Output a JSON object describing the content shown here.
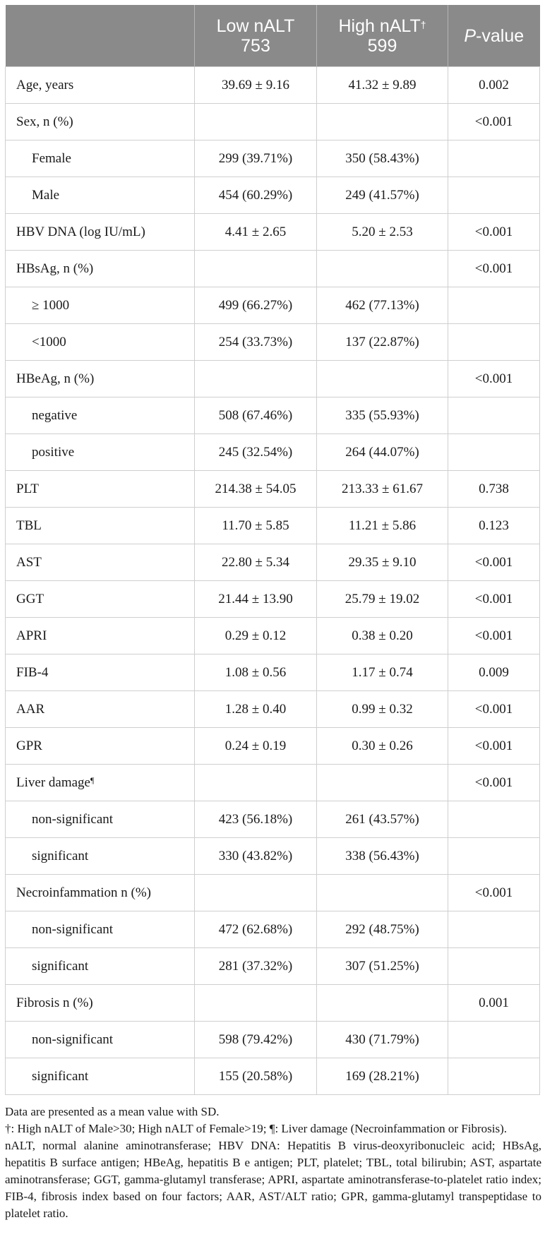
{
  "header": {
    "col1": "",
    "col2_line1": "Low nALT",
    "col2_line2": "753",
    "col3_line1": "High nALT",
    "col3_sup": "†",
    "col3_line2": "599",
    "col4_italic": "P",
    "col4_rest": "-value"
  },
  "rows": [
    {
      "label": "Age, years",
      "sup": "",
      "indent": false,
      "low": "39.69 ± 9.16",
      "high": "41.32 ± 9.89",
      "p": "0.002"
    },
    {
      "label": "Sex, n (%)",
      "sup": "",
      "indent": false,
      "low": "",
      "high": "",
      "p": "<0.001"
    },
    {
      "label": "Female",
      "sup": "",
      "indent": true,
      "low": "299 (39.71%)",
      "high": "350 (58.43%)",
      "p": ""
    },
    {
      "label": "Male",
      "sup": "",
      "indent": true,
      "low": "454 (60.29%)",
      "high": "249 (41.57%)",
      "p": ""
    },
    {
      "label": "HBV DNA (log IU/mL)",
      "sup": "",
      "indent": false,
      "low": "4.41 ± 2.65",
      "high": "5.20 ± 2.53",
      "p": "<0.001"
    },
    {
      "label": "HBsAg, n (%)",
      "sup": "",
      "indent": false,
      "low": "",
      "high": "",
      "p": "<0.001"
    },
    {
      "label": "≥ 1000",
      "sup": "",
      "indent": true,
      "low": "499 (66.27%)",
      "high": "462 (77.13%)",
      "p": ""
    },
    {
      "label": "<1000",
      "sup": "",
      "indent": true,
      "low": "254 (33.73%)",
      "high": "137 (22.87%)",
      "p": ""
    },
    {
      "label": "HBeAg, n (%)",
      "sup": "",
      "indent": false,
      "low": "",
      "high": "",
      "p": "<0.001"
    },
    {
      "label": "negative",
      "sup": "",
      "indent": true,
      "low": "508 (67.46%)",
      "high": "335 (55.93%)",
      "p": ""
    },
    {
      "label": "positive",
      "sup": "",
      "indent": true,
      "low": "245 (32.54%)",
      "high": "264 (44.07%)",
      "p": ""
    },
    {
      "label": "PLT",
      "sup": "",
      "indent": false,
      "low": "214.38 ± 54.05",
      "high": "213.33 ± 61.67",
      "p": "0.738"
    },
    {
      "label": "TBL",
      "sup": "",
      "indent": false,
      "low": "11.70 ± 5.85",
      "high": "11.21 ± 5.86",
      "p": "0.123"
    },
    {
      "label": "AST",
      "sup": "",
      "indent": false,
      "low": "22.80 ± 5.34",
      "high": "29.35 ± 9.10",
      "p": "<0.001"
    },
    {
      "label": "GGT",
      "sup": "",
      "indent": false,
      "low": "21.44 ± 13.90",
      "high": "25.79 ± 19.02",
      "p": "<0.001"
    },
    {
      "label": "APRI",
      "sup": "",
      "indent": false,
      "low": "0.29 ± 0.12",
      "high": "0.38 ± 0.20",
      "p": "<0.001"
    },
    {
      "label": "FIB-4",
      "sup": "",
      "indent": false,
      "low": "1.08 ± 0.56",
      "high": "1.17 ± 0.74",
      "p": "0.009"
    },
    {
      "label": "AAR",
      "sup": "",
      "indent": false,
      "low": "1.28 ± 0.40",
      "high": "0.99 ± 0.32",
      "p": "<0.001"
    },
    {
      "label": "GPR",
      "sup": "",
      "indent": false,
      "low": "0.24 ± 0.19",
      "high": "0.30 ± 0.26",
      "p": "<0.001"
    },
    {
      "label": "Liver damage",
      "sup": "¶",
      "indent": false,
      "low": "",
      "high": "",
      "p": "<0.001"
    },
    {
      "label": "non-significant",
      "sup": "",
      "indent": true,
      "low": "423 (56.18%)",
      "high": "261 (43.57%)",
      "p": ""
    },
    {
      "label": "significant",
      "sup": "",
      "indent": true,
      "low": "330 (43.82%)",
      "high": "338 (56.43%)",
      "p": ""
    },
    {
      "label": "Necroinfammation n (%)",
      "sup": "",
      "indent": false,
      "low": "",
      "high": "",
      "p": "<0.001"
    },
    {
      "label": "non-significant",
      "sup": "",
      "indent": true,
      "low": "472 (62.68%)",
      "high": "292 (48.75%)",
      "p": ""
    },
    {
      "label": "significant",
      "sup": "",
      "indent": true,
      "low": "281 (37.32%)",
      "high": "307 (51.25%)",
      "p": ""
    },
    {
      "label": "Fibrosis n (%)",
      "sup": "",
      "indent": false,
      "low": "",
      "high": "",
      "p": "0.001"
    },
    {
      "label": "non-significant",
      "sup": "",
      "indent": true,
      "low": "598 (79.42%)",
      "high": "430 (71.79%)",
      "p": ""
    },
    {
      "label": "significant",
      "sup": "",
      "indent": true,
      "low": "155 (20.58%)",
      "high": "169 (28.21%)",
      "p": ""
    }
  ],
  "notes": {
    "line1": "Data are presented as a mean value with SD.",
    "line2": "†: High nALT of Male>30; High nALT of Female>19; ¶: Liver damage (Necroinfammation or Fibrosis).",
    "line3": "nALT, normal alanine aminotransferase; HBV DNA: Hepatitis B virus-deoxyribonucleic acid; HBsAg, hepatitis B surface antigen; HBeAg, hepatitis B e antigen; PLT, platelet; TBL, total bilirubin; AST, aspartate aminotransferase; GGT, gamma-glutamyl transferase; APRI, aspartate aminotransferase-to-platelet ratio index; FIB-4, fibrosis index based on four factors; AAR, AST/ALT ratio; GPR, gamma-glutamyl transpeptidase to platelet ratio."
  }
}
